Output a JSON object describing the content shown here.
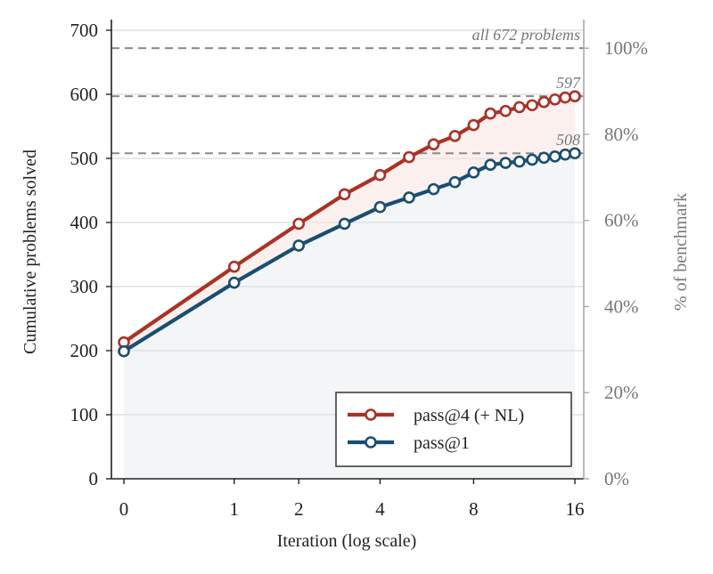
{
  "chart_data": {
    "type": "line",
    "xlabel": "Iteration  (log scale)",
    "ylabel": "Cumulative problems solved",
    "ylabel_right": "% of benchmark",
    "x_scale": "log2(1+x)",
    "xlim": [
      0,
      16
    ],
    "ylim": [
      0,
      700
    ],
    "x_ticks": [
      0,
      1,
      2,
      4,
      8,
      16
    ],
    "x_tick_labels": [
      "0",
      "1",
      "2",
      "4",
      "8",
      "16"
    ],
    "y_ticks": [
      0,
      100,
      200,
      300,
      400,
      500,
      600,
      700
    ],
    "y_tick_labels": [
      "0",
      "100",
      "200",
      "300",
      "400",
      "500",
      "600",
      "700"
    ],
    "y_right_ticks": [
      0,
      20,
      40,
      60,
      80,
      100
    ],
    "y_right_tick_labels": [
      "0%",
      "20%",
      "40%",
      "60%",
      "80%",
      "100%"
    ],
    "grid": "horizontal",
    "legend_position": "bottom-right",
    "reference_lines": [
      {
        "value": 672,
        "label": "all 672 problems"
      },
      {
        "value": 597,
        "label": "597"
      },
      {
        "value": 508,
        "label": "508"
      }
    ],
    "x": [
      0,
      1,
      2,
      3,
      4,
      5,
      6,
      7,
      8,
      9,
      10,
      11,
      12,
      13,
      14,
      15,
      16
    ],
    "series": [
      {
        "name": "pass@4 (+ NL)",
        "color": "#a93226",
        "values": [
          213,
          331,
          398,
          444,
          474,
          502,
          522,
          535,
          552,
          570,
          574,
          580,
          583,
          588,
          592,
          595,
          597
        ]
      },
      {
        "name": "pass@1",
        "color": "#1a4e72",
        "values": [
          199,
          306,
          364,
          398,
          424,
          439,
          452,
          463,
          478,
          490,
          493,
          495,
          498,
          501,
          503,
          506,
          508
        ]
      }
    ]
  }
}
